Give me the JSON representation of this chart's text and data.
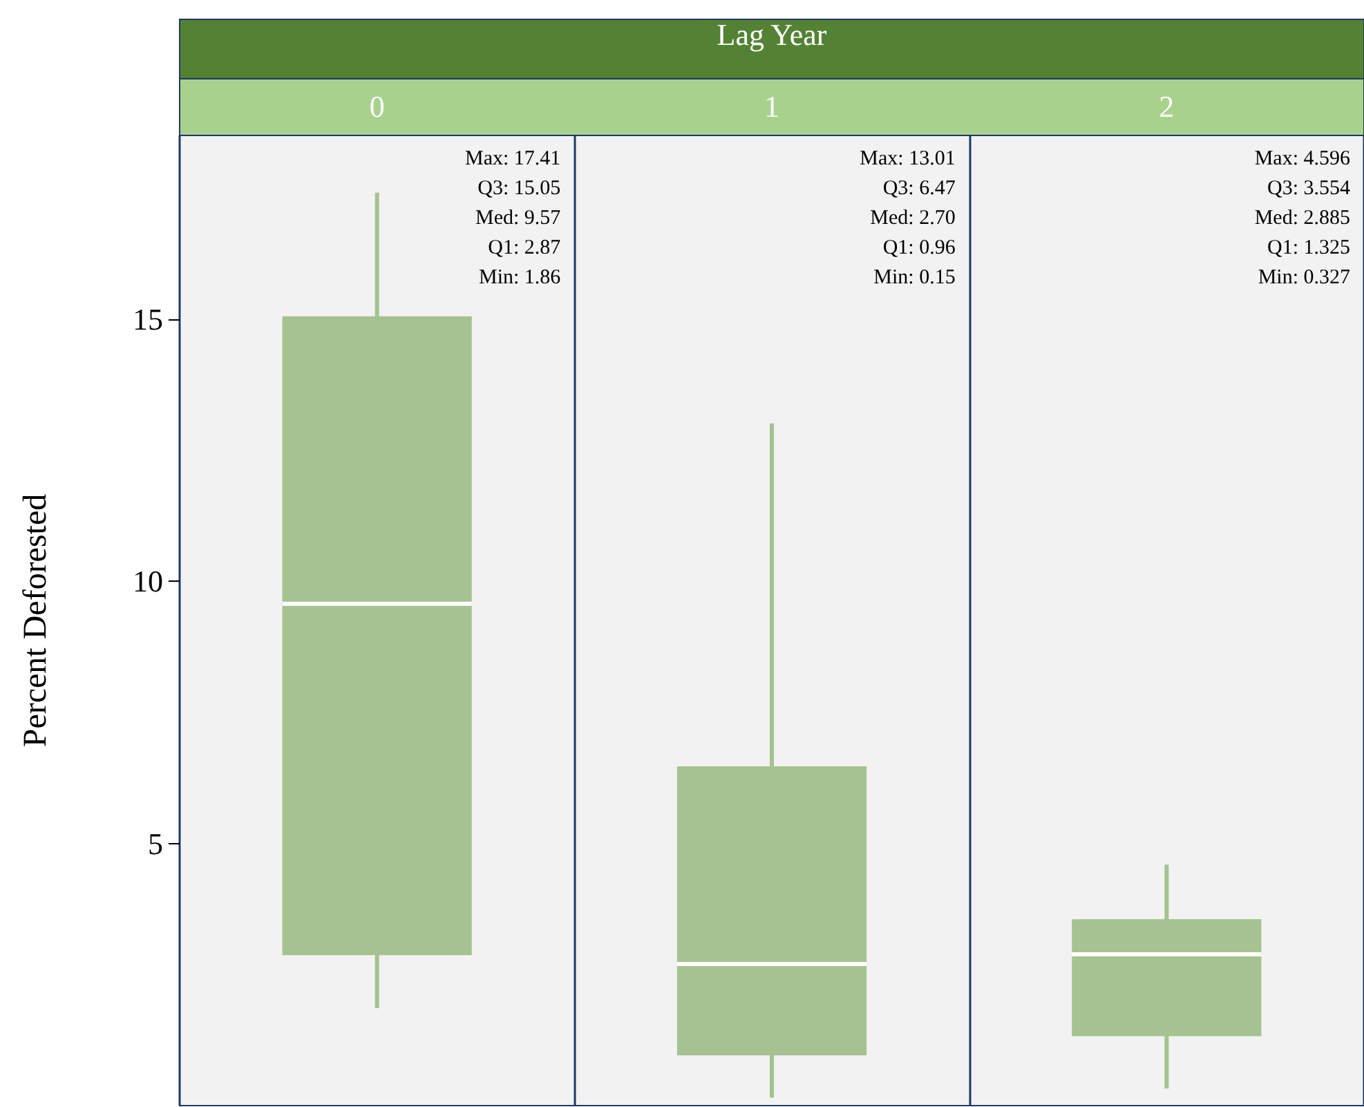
{
  "chart_data": {
    "type": "box",
    "xlabel": "Lag Year",
    "ylabel": "Percent Deforested",
    "categories": [
      "0",
      "1",
      "2"
    ],
    "color": "#a5c290",
    "boxes": [
      {
        "low": 1.86,
        "q1": 2.87,
        "median": 9.57,
        "q3": 15.05,
        "high": 17.41
      },
      {
        "low": 0.15,
        "q1": 0.96,
        "median": 2.7,
        "q3": 6.47,
        "high": 13.01
      },
      {
        "low": 0.327,
        "q1": 1.325,
        "median": 2.885,
        "q3": 3.554,
        "high": 4.596
      }
    ],
    "ylim": [
      0,
      18.5
    ],
    "yticks": [
      5,
      10,
      15
    ],
    "grid": false,
    "annotations": [
      "Max: 17.41\nQ3: 15.05\nMed: 9.57\nQ1: 2.87\nMin: 1.86",
      "Max: 13.01\nQ3: 6.47\nMed: 2.70\nQ1: 0.96\nMin: 0.15",
      "Max: 4.596\nQ3: 3.554\nMed: 2.885\nQ1: 1.325\nMin: 0.327"
    ]
  }
}
